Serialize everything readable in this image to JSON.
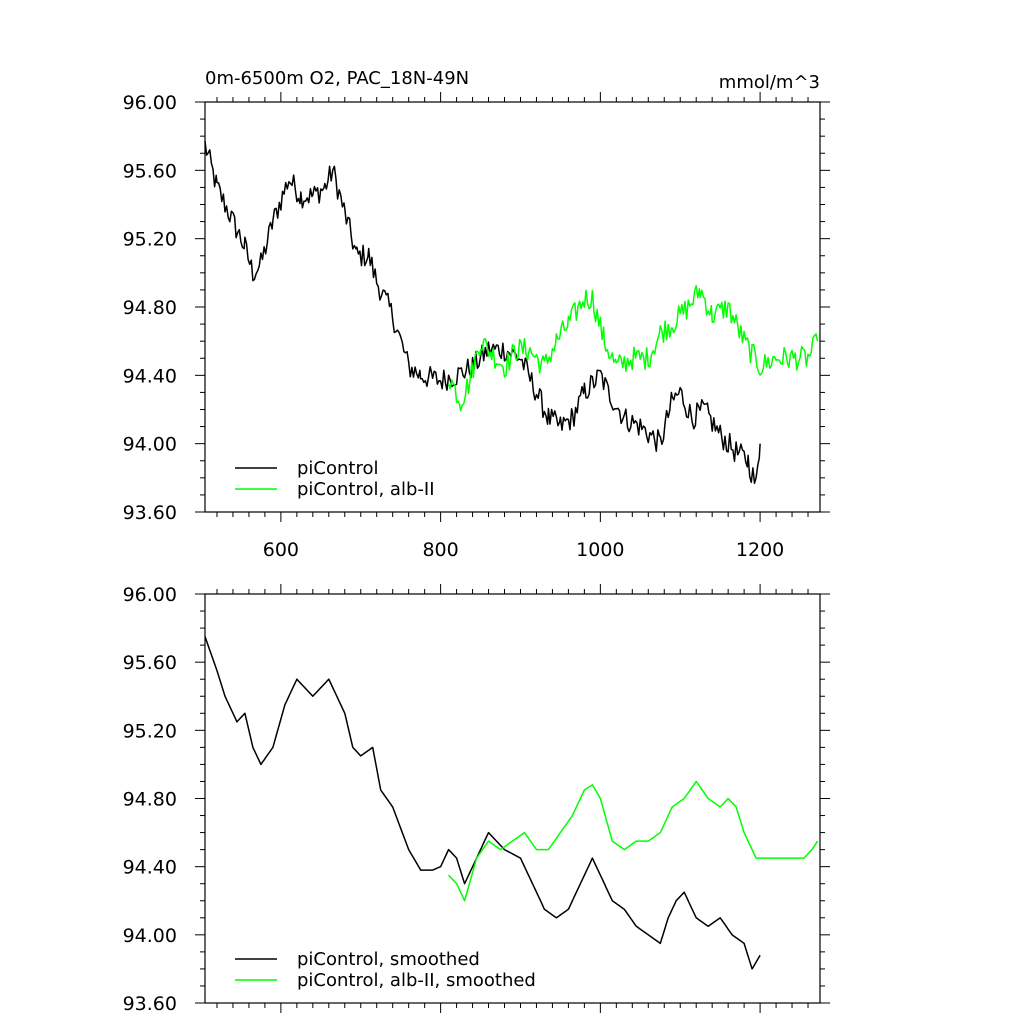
{
  "chart_data": [
    {
      "type": "line",
      "title": "0m-6500m O2, PAC_18N-49N",
      "units": "mmol/m^3",
      "xlim": [
        505,
        1275
      ],
      "ylim": [
        93.6,
        96.0
      ],
      "x_ticks": [
        600,
        800,
        1000,
        1200
      ],
      "y_ticks": [
        93.6,
        94.0,
        94.4,
        94.8,
        95.2,
        95.6,
        96.0
      ],
      "y_tick_labels": [
        "93.60",
        "94.00",
        "94.40",
        "94.80",
        "95.20",
        "95.60",
        "96.00"
      ],
      "x_tick_labels": [
        "600",
        "800",
        "1000",
        "1200"
      ],
      "grid": false,
      "legend": "bottom-left",
      "noise": 0.07,
      "series": [
        {
          "name": "piControl",
          "color": "#000000",
          "x": [
            505,
            520,
            540,
            555,
            565,
            575,
            590,
            610,
            625,
            640,
            655,
            665,
            680,
            695,
            710,
            720,
            740,
            760,
            775,
            790,
            800,
            820,
            840,
            860,
            880,
            900,
            920,
            935,
            950,
            965,
            980,
            1000,
            1010,
            1030,
            1050,
            1075,
            1090,
            1100,
            1115,
            1130,
            1150,
            1170,
            1185,
            1195,
            1200
          ],
          "y": [
            95.75,
            95.5,
            95.3,
            95.15,
            95.0,
            95.05,
            95.3,
            95.55,
            95.45,
            95.45,
            95.5,
            95.6,
            95.35,
            95.1,
            95.1,
            94.95,
            94.75,
            94.45,
            94.4,
            94.38,
            94.37,
            94.4,
            94.45,
            94.55,
            94.55,
            94.5,
            94.3,
            94.15,
            94.1,
            94.15,
            94.3,
            94.4,
            94.3,
            94.15,
            94.1,
            94.0,
            94.25,
            94.3,
            94.15,
            94.2,
            94.05,
            93.95,
            93.9,
            93.75,
            94.0
          ]
        },
        {
          "name": "piControl, alb-II",
          "color": "#00ff00",
          "x": [
            810,
            825,
            835,
            850,
            870,
            880,
            895,
            910,
            930,
            945,
            960,
            980,
            990,
            1005,
            1020,
            1040,
            1060,
            1075,
            1090,
            1110,
            1125,
            1140,
            1160,
            1180,
            1200,
            1220,
            1240,
            1260,
            1272
          ],
          "y": [
            94.4,
            94.25,
            94.35,
            94.6,
            94.5,
            94.45,
            94.55,
            94.55,
            94.45,
            94.6,
            94.7,
            94.85,
            94.85,
            94.6,
            94.45,
            94.5,
            94.5,
            94.65,
            94.7,
            94.8,
            94.9,
            94.75,
            94.8,
            94.6,
            94.45,
            94.5,
            94.5,
            94.5,
            94.6
          ]
        }
      ]
    },
    {
      "type": "line",
      "title": "",
      "xlim": [
        505,
        1275
      ],
      "ylim": [
        93.6,
        96.0
      ],
      "x_ticks": [
        600,
        800,
        1000,
        1200
      ],
      "y_ticks": [
        93.6,
        94.0,
        94.4,
        94.8,
        95.2,
        95.6,
        96.0
      ],
      "y_tick_labels": [
        "93.60",
        "94.00",
        "94.40",
        "94.80",
        "95.20",
        "95.60",
        "96.00"
      ],
      "grid": false,
      "legend": "bottom-left",
      "noise": 0.0,
      "series": [
        {
          "name": "piControl, smoothed",
          "color": "#000000",
          "x": [
            505,
            520,
            530,
            545,
            555,
            565,
            575,
            590,
            605,
            620,
            640,
            650,
            660,
            670,
            680,
            690,
            700,
            715,
            725,
            740,
            760,
            775,
            790,
            800,
            810,
            820,
            830,
            845,
            860,
            880,
            900,
            915,
            930,
            945,
            960,
            975,
            990,
            1005,
            1015,
            1030,
            1045,
            1060,
            1075,
            1085,
            1095,
            1105,
            1120,
            1135,
            1150,
            1165,
            1180,
            1190,
            1200
          ],
          "y": [
            95.75,
            95.55,
            95.4,
            95.25,
            95.3,
            95.1,
            95.0,
            95.1,
            95.35,
            95.5,
            95.4,
            95.45,
            95.5,
            95.4,
            95.3,
            95.1,
            95.05,
            95.1,
            94.85,
            94.75,
            94.5,
            94.38,
            94.38,
            94.4,
            94.5,
            94.45,
            94.3,
            94.45,
            94.6,
            94.5,
            94.45,
            94.3,
            94.15,
            94.1,
            94.15,
            94.3,
            94.45,
            94.3,
            94.2,
            94.15,
            94.05,
            94.0,
            93.95,
            94.1,
            94.2,
            94.25,
            94.1,
            94.05,
            94.1,
            94.0,
            93.95,
            93.8,
            93.88
          ]
        },
        {
          "name": "piControl, alb-II, smoothed",
          "color": "#00ff00",
          "x": [
            810,
            820,
            830,
            845,
            860,
            875,
            890,
            905,
            920,
            935,
            950,
            965,
            980,
            990,
            1000,
            1015,
            1030,
            1045,
            1060,
            1075,
            1090,
            1105,
            1120,
            1135,
            1150,
            1160,
            1170,
            1180,
            1195,
            1210,
            1225,
            1240,
            1255,
            1265,
            1272
          ],
          "y": [
            94.35,
            94.3,
            94.2,
            94.45,
            94.55,
            94.5,
            94.55,
            94.6,
            94.5,
            94.5,
            94.6,
            94.7,
            94.85,
            94.88,
            94.8,
            94.55,
            94.5,
            94.55,
            94.55,
            94.6,
            94.75,
            94.8,
            94.9,
            94.8,
            94.75,
            94.8,
            94.75,
            94.6,
            94.45,
            94.45,
            94.45,
            94.45,
            94.45,
            94.5,
            94.55
          ]
        }
      ]
    }
  ]
}
